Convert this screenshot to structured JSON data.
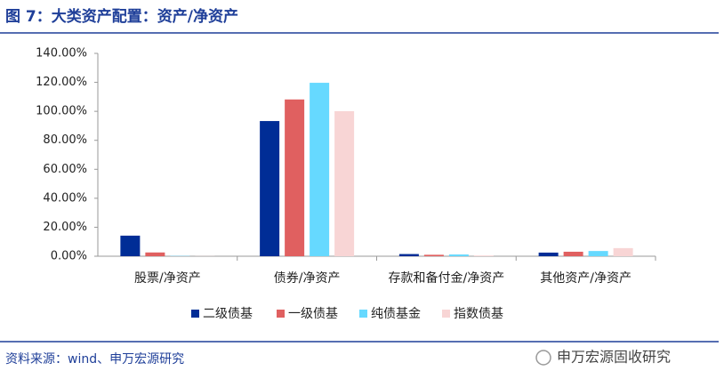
{
  "chart_data": {
    "type": "bar",
    "title": "图 7：大类资产配置：资产/净资产",
    "categories": [
      "股票/净资产",
      "债券/净资产",
      "存款和备付金/净资产",
      "其他资产/净资产"
    ],
    "series": [
      {
        "name": "二级债基",
        "color": "#002d96",
        "values": [
          14.2,
          93.3,
          1.5,
          2.5
        ]
      },
      {
        "name": "一级债基",
        "color": "#e06060",
        "values": [
          2.6,
          108.2,
          1.0,
          3.1
        ]
      },
      {
        "name": "纯债基金",
        "color": "#66d9ff",
        "values": [
          0.2,
          119.7,
          1.2,
          3.6
        ]
      },
      {
        "name": "指数债基",
        "color": "#f8d5d5",
        "values": [
          0.1,
          100.1,
          0.5,
          5.6
        ]
      }
    ],
    "ylim": [
      0,
      140
    ],
    "yticks": [
      {
        "value": 0,
        "label": "0.00%"
      },
      {
        "value": 20,
        "label": "20.00%"
      },
      {
        "value": 40,
        "label": "40.00%"
      },
      {
        "value": 60,
        "label": "60.00%"
      },
      {
        "value": 80,
        "label": "80.00%"
      },
      {
        "value": 100,
        "label": "100.00%"
      },
      {
        "value": 120,
        "label": "120.00%"
      },
      {
        "value": 140,
        "label": "140.00%"
      }
    ],
    "legend": "bottom"
  },
  "source": "资料来源：wind、申万宏源研究",
  "watermark": "申万宏源固收研究"
}
